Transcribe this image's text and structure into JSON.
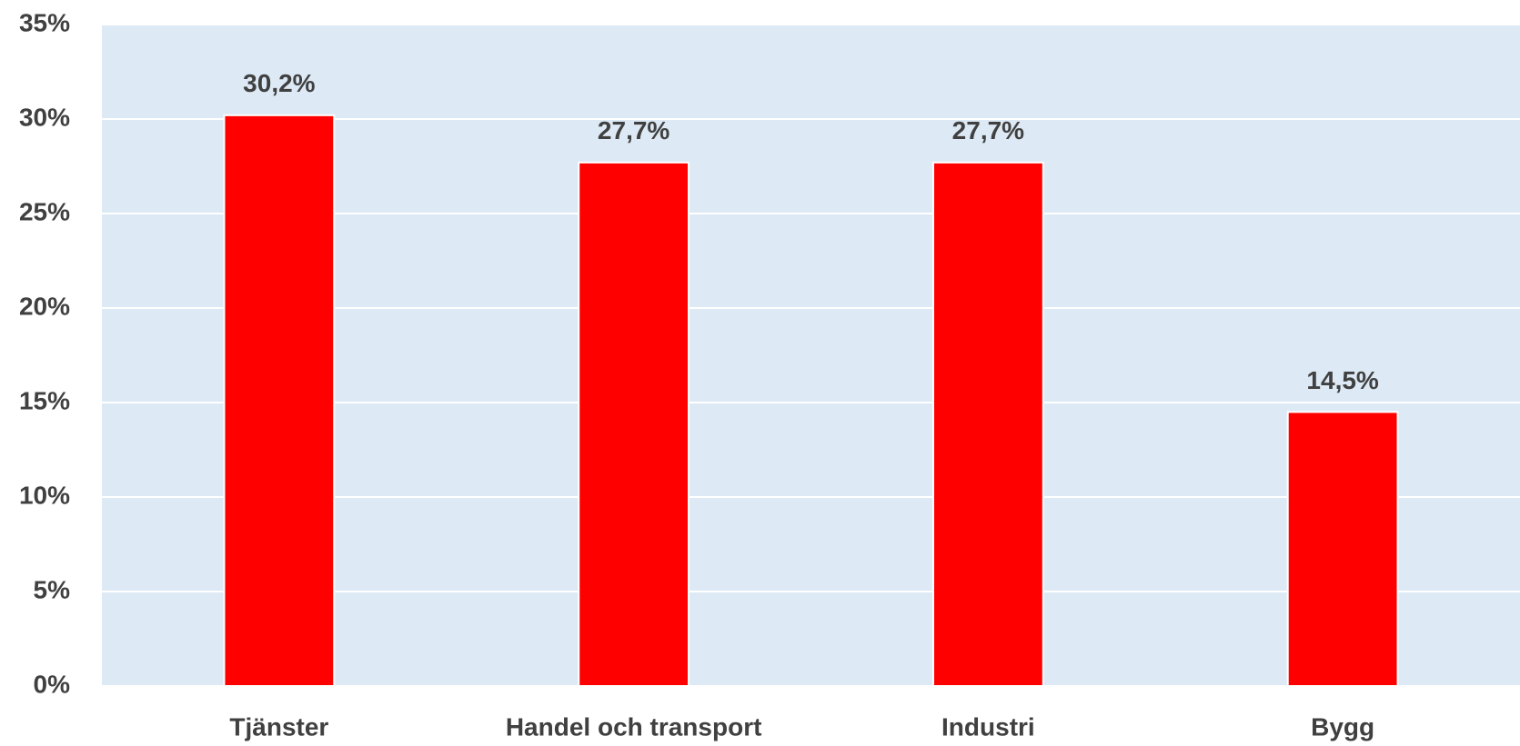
{
  "chart_data": {
    "type": "bar",
    "categories": [
      "Tjänster",
      "Handel och transport",
      "Industri",
      "Bygg"
    ],
    "values": [
      30.2,
      27.7,
      27.7,
      14.5
    ],
    "value_labels": [
      "30,2%",
      "27,7%",
      "27,7%",
      "14,5%"
    ],
    "color": "#ff0000",
    "ylim": [
      0,
      35
    ],
    "yticks": [
      {
        "value": 0,
        "label": "0%"
      },
      {
        "value": 5,
        "label": "5%"
      },
      {
        "value": 10,
        "label": "10%"
      },
      {
        "value": 15,
        "label": "15%"
      },
      {
        "value": 20,
        "label": "20%"
      },
      {
        "value": 25,
        "label": "25%"
      },
      {
        "value": 30,
        "label": "30%"
      },
      {
        "value": 35,
        "label": "35%"
      }
    ],
    "grid": true
  }
}
